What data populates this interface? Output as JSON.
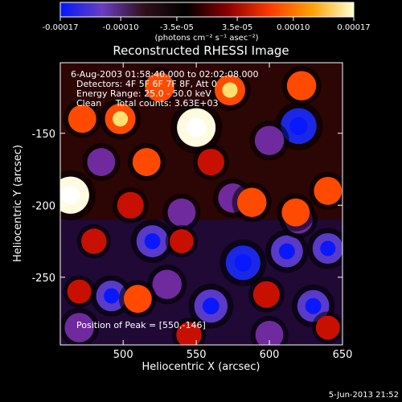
{
  "chart_data": {
    "type": "heatmap",
    "title": "Reconstructed RHESSI Image",
    "xlabel": "Heliocentric X (arcsec)",
    "ylabel": "Heliocentric Y (arcsec)",
    "xlim": [
      457,
      650
    ],
    "ylim": [
      -297,
      -101
    ],
    "xticks": [
      500,
      550,
      600,
      650
    ],
    "yticks": [
      -150,
      -200,
      -250
    ],
    "colorbar": {
      "range": [
        -0.00017,
        0.00017
      ],
      "ticks": [
        "-0.00017",
        "-0.00010",
        "-3.5e-05",
        "3.5e-05",
        "0.00010",
        "0.00017"
      ],
      "label": "(photons cm⁻² s⁻¹ asec⁻²)",
      "colors": [
        "#0018ff",
        "#6a3ec2",
        "#30101a",
        "#000000",
        "#8c0000",
        "#ff3a00",
        "#ffa000",
        "#ffffd0"
      ]
    },
    "annotations": [
      "6-Aug-2003 01:58:40.000 to 02:02:08.000",
      "Detectors: 4F 5F 6F 7F 8F, Att 0",
      "Energy Range: 25.0 - 50.0 keV",
      "Clean     Total counts: 3.63E+03"
    ],
    "peak_label": "Position of Peak = [550,-146]",
    "peak": {
      "x": 550,
      "y": -146
    },
    "hot_spots": [
      {
        "x": 550,
        "y": -146,
        "v": 0.00017
      },
      {
        "x": 464,
        "y": -193,
        "v": 0.00016
      },
      {
        "x": 498,
        "y": -140,
        "v": 0.00011
      },
      {
        "x": 472,
        "y": -140,
        "v": 9e-05
      },
      {
        "x": 525,
        "y": -118,
        "v": 0.0001
      },
      {
        "x": 573,
        "y": -120,
        "v": 0.00011
      },
      {
        "x": 622,
        "y": -117,
        "v": 0.0001
      },
      {
        "x": 516,
        "y": -170,
        "v": 9e-05
      },
      {
        "x": 560,
        "y": -170,
        "v": 8e-05
      },
      {
        "x": 588,
        "y": -198,
        "v": 0.0001
      },
      {
        "x": 618,
        "y": -205,
        "v": 9e-05
      },
      {
        "x": 640,
        "y": -190,
        "v": 9e-05
      },
      {
        "x": 505,
        "y": -200,
        "v": 8e-05
      },
      {
        "x": 480,
        "y": -225,
        "v": 7e-05
      },
      {
        "x": 540,
        "y": -225,
        "v": 6e-05
      },
      {
        "x": 598,
        "y": -262,
        "v": 8e-05
      },
      {
        "x": 510,
        "y": -265,
        "v": 9e-05
      },
      {
        "x": 545,
        "y": -290,
        "v": 7e-05
      },
      {
        "x": 470,
        "y": -260,
        "v": 6e-05
      },
      {
        "x": 640,
        "y": -285,
        "v": 6e-05
      }
    ],
    "cold_spots": [
      {
        "x": 620,
        "y": -145,
        "v": -0.00015
      },
      {
        "x": 582,
        "y": -240,
        "v": -0.00014
      },
      {
        "x": 520,
        "y": -225,
        "v": -0.00012
      },
      {
        "x": 612,
        "y": -232,
        "v": -0.00012
      },
      {
        "x": 492,
        "y": -263,
        "v": -0.00011
      },
      {
        "x": 560,
        "y": -270,
        "v": -0.00013
      },
      {
        "x": 630,
        "y": -270,
        "v": -0.00012
      },
      {
        "x": 600,
        "y": -155,
        "v": -0.0001
      },
      {
        "x": 485,
        "y": -170,
        "v": -9e-05
      },
      {
        "x": 575,
        "y": -195,
        "v": -0.0001
      },
      {
        "x": 540,
        "y": -205,
        "v": -9e-05
      },
      {
        "x": 640,
        "y": -230,
        "v": -0.00011
      },
      {
        "x": 530,
        "y": -255,
        "v": -0.0001
      },
      {
        "x": 470,
        "y": -285,
        "v": -0.0001
      },
      {
        "x": 600,
        "y": -290,
        "v": -9e-05
      },
      {
        "x": 620,
        "y": -210,
        "v": -9e-05
      }
    ]
  },
  "footer": {
    "date": "5-Jun-2013 21:52"
  }
}
